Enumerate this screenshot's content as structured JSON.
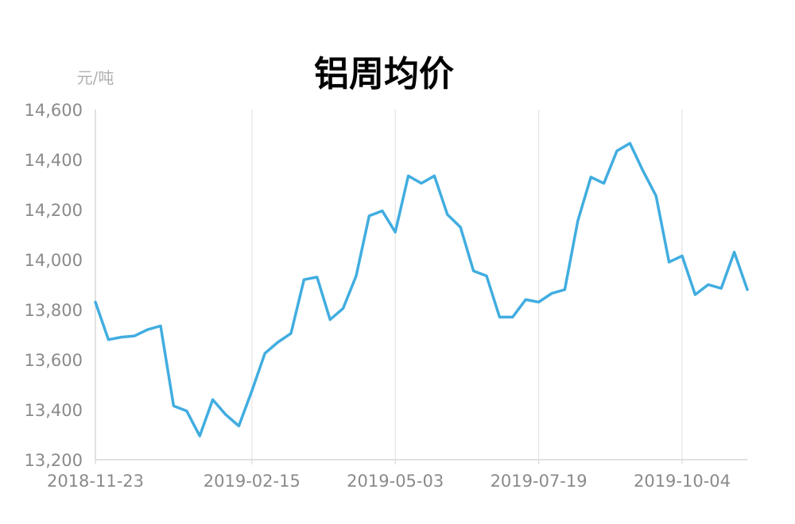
{
  "chart_data": {
    "type": "line",
    "title": "铝周均价",
    "ylabel": "元/吨",
    "xlabel": "",
    "ylim": [
      13200,
      14600
    ],
    "yticks": [
      "13,200",
      "13,400",
      "13,600",
      "13,800",
      "14,000",
      "14,200",
      "14,400",
      "14,600"
    ],
    "ytick_values": [
      13200,
      13400,
      13600,
      13800,
      14000,
      14200,
      14400,
      14600
    ],
    "x": [
      "2018-11-23",
      "2018-11-30",
      "2018-12-07",
      "2018-12-14",
      "2018-12-21",
      "2018-12-28",
      "2019-01-04",
      "2019-01-11",
      "2019-01-18",
      "2019-01-25",
      "2019-02-01",
      "2019-02-08",
      "2019-02-15",
      "2019-02-22",
      "2019-03-01",
      "2019-03-08",
      "2019-03-15",
      "2019-03-22",
      "2019-03-29",
      "2019-04-05",
      "2019-04-12",
      "2019-04-19",
      "2019-04-26",
      "2019-05-03",
      "2019-05-10",
      "2019-05-17",
      "2019-05-24",
      "2019-05-31",
      "2019-06-07",
      "2019-06-14",
      "2019-06-21",
      "2019-06-28",
      "2019-07-05",
      "2019-07-12",
      "2019-07-19",
      "2019-07-26",
      "2019-08-02",
      "2019-08-09",
      "2019-08-16",
      "2019-08-23",
      "2019-08-30",
      "2019-09-06",
      "2019-09-13",
      "2019-09-20",
      "2019-09-27",
      "2019-10-04",
      "2019-10-11",
      "2019-10-18",
      "2019-10-25",
      "2019-11-01",
      "2019-11-08"
    ],
    "xticks": [
      "2018-11-23",
      "2019-02-15",
      "2019-05-03",
      "2019-07-19",
      "2019-10-04"
    ],
    "series": [
      {
        "name": "",
        "color": "#41ade0",
        "values": [
          13830,
          13680,
          13690,
          13695,
          13720,
          13735,
          13415,
          13395,
          13295,
          13440,
          13380,
          13335,
          13475,
          13625,
          13670,
          13705,
          13920,
          13930,
          13760,
          13805,
          13935,
          14175,
          14195,
          14110,
          14335,
          14305,
          14335,
          14180,
          14130,
          13955,
          13935,
          13770,
          13770,
          13840,
          13830,
          13865,
          13880,
          14155,
          14330,
          14305,
          14435,
          14465,
          14355,
          14255,
          13990,
          14015,
          13860,
          13900,
          13885,
          14030,
          13880
        ]
      }
    ],
    "grid": {
      "vertical": true,
      "horizontal": false
    },
    "legend": "none"
  }
}
